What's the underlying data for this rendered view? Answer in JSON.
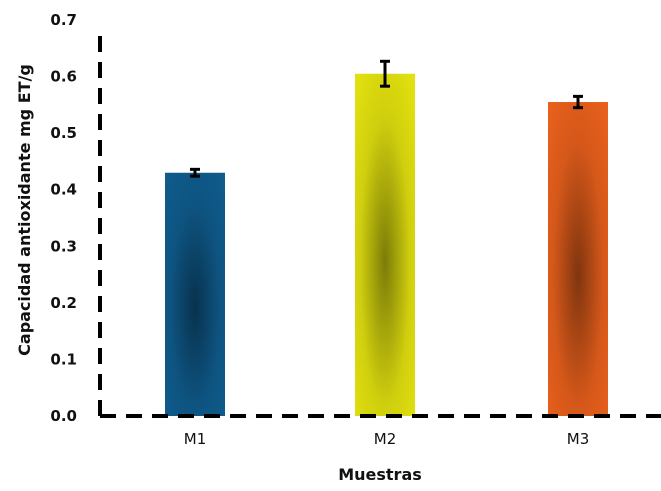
{
  "chart_data": {
    "type": "bar",
    "categories": [
      "M1",
      "M2",
      "M3"
    ],
    "values": [
      0.43,
      0.605,
      0.555
    ],
    "errors": [
      0.006,
      0.022,
      0.01
    ],
    "colors": [
      "#0f5b8c",
      "#e2e10f",
      "#e8601c"
    ],
    "xlabel": "Muestras",
    "ylabel": "Capacidad  antioxidante mg ET/g",
    "ylim": [
      0,
      0.7
    ],
    "yticks": [
      "0.0",
      "0.1",
      "0.2",
      "0.3",
      "0.4",
      "0.5",
      "0.6",
      "0.7"
    ],
    "grid": false,
    "legend": "none"
  }
}
